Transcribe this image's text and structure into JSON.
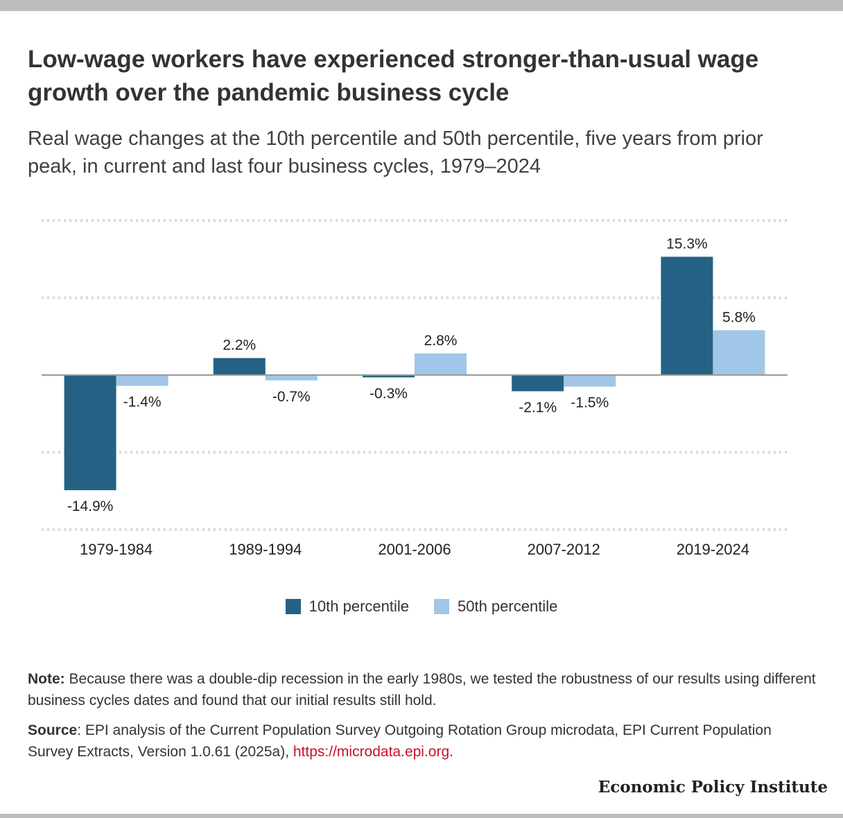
{
  "title": "Low-wage workers have experienced stronger-than-usual wage growth over the pandemic business cycle",
  "subtitle": "Real wage changes at the 10th percentile and 50th percentile, five years from prior peak, in current and last four business cycles, 1979–2024",
  "chart_data": {
    "type": "bar",
    "categories": [
      "1979-1984",
      "1989-1994",
      "2001-2006",
      "2007-2012",
      "2019-2024"
    ],
    "series": [
      {
        "name": "10th percentile",
        "color": "#256184",
        "values": [
          -14.9,
          2.2,
          -0.3,
          -2.1,
          15.3
        ],
        "labels": [
          "-14.9%",
          "2.2%",
          "-0.3%",
          "-2.1%",
          "15.3%"
        ]
      },
      {
        "name": "50th percentile",
        "color": "#a1c6e7",
        "values": [
          -1.4,
          -0.7,
          2.8,
          -1.5,
          5.8
        ],
        "labels": [
          "-1.4%",
          "-0.7%",
          "2.8%",
          "-1.5%",
          "5.8%"
        ]
      }
    ],
    "ylim": [
      -20,
      20
    ],
    "grid": true,
    "legend_position": "bottom-center",
    "zero_line_color": "#999999",
    "grid_color": "#d9d9d9"
  },
  "legend": {
    "items": [
      {
        "label": "10th percentile",
        "color": "#256184"
      },
      {
        "label": "50th percentile",
        "color": "#a1c6e7"
      }
    ]
  },
  "notes": {
    "note_label": "Note:",
    "note_text": " Because there was a double-dip recession in the early 1980s, we tested the robustness of our results using different business cycles dates and found that our initial results still hold.",
    "source_label": "Source",
    "source_text": ": EPI analysis of the Current Population Survey Outgoing Rotation Group microdata, EPI Current Population Survey Extracts, Version 1.0.61 (2025a), ",
    "source_link": "https://microdata.epi.org",
    "source_end": "."
  },
  "brand": "Economic Policy Institute"
}
